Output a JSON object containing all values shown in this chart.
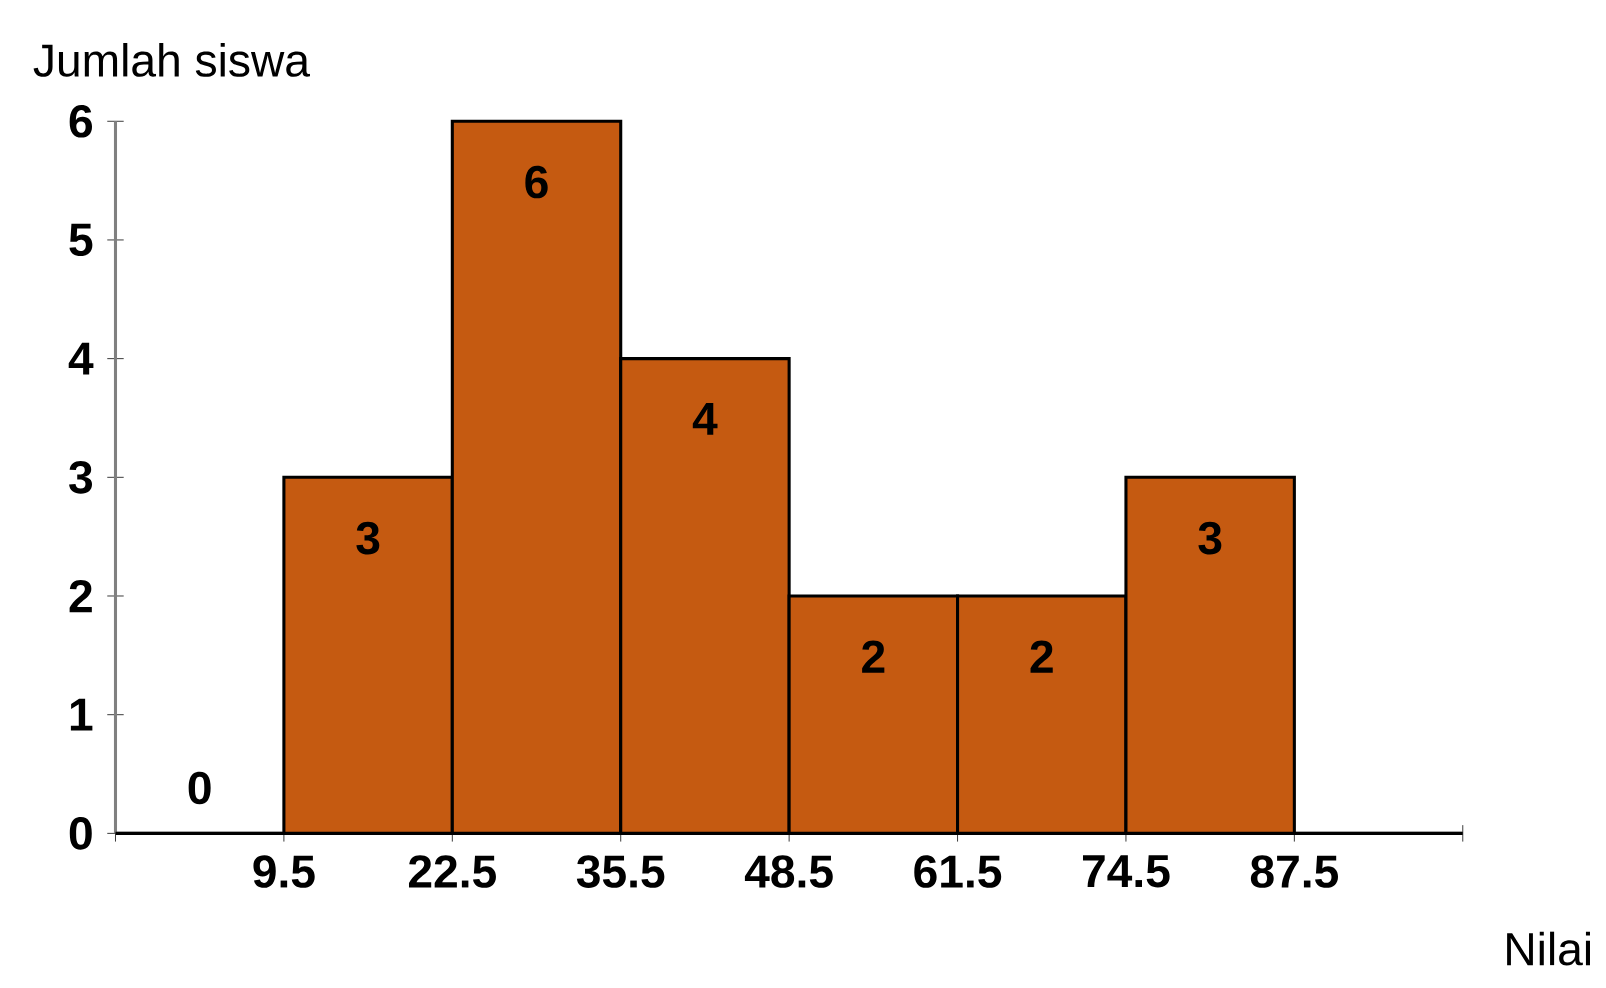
{
  "chart_data": {
    "type": "histogram",
    "xlabel": "Nilai",
    "ylabel": "Jumlah siswa",
    "bins": [
      -3.5,
      9.5,
      22.5,
      35.5,
      48.5,
      61.5,
      74.5,
      87.5,
      100.5
    ],
    "values": [
      0,
      3,
      6,
      4,
      2,
      2,
      3,
      0
    ],
    "value_labels": [
      "0",
      "3",
      "6",
      "4",
      "2",
      "2",
      "3",
      null
    ],
    "color": "#c55a11",
    "xlim": [
      -3.5,
      100.5
    ],
    "xticks": [
      {
        "value": -3.5,
        "label": null
      },
      9.5,
      22.5,
      35.5,
      48.5,
      61.5,
      74.5,
      87.5,
      {
        "value": 100.5,
        "label": null
      }
    ],
    "ylim": [
      0,
      6
    ],
    "yticks": [
      0,
      1,
      2,
      3,
      4,
      5,
      6
    ],
    "grid": false
  }
}
